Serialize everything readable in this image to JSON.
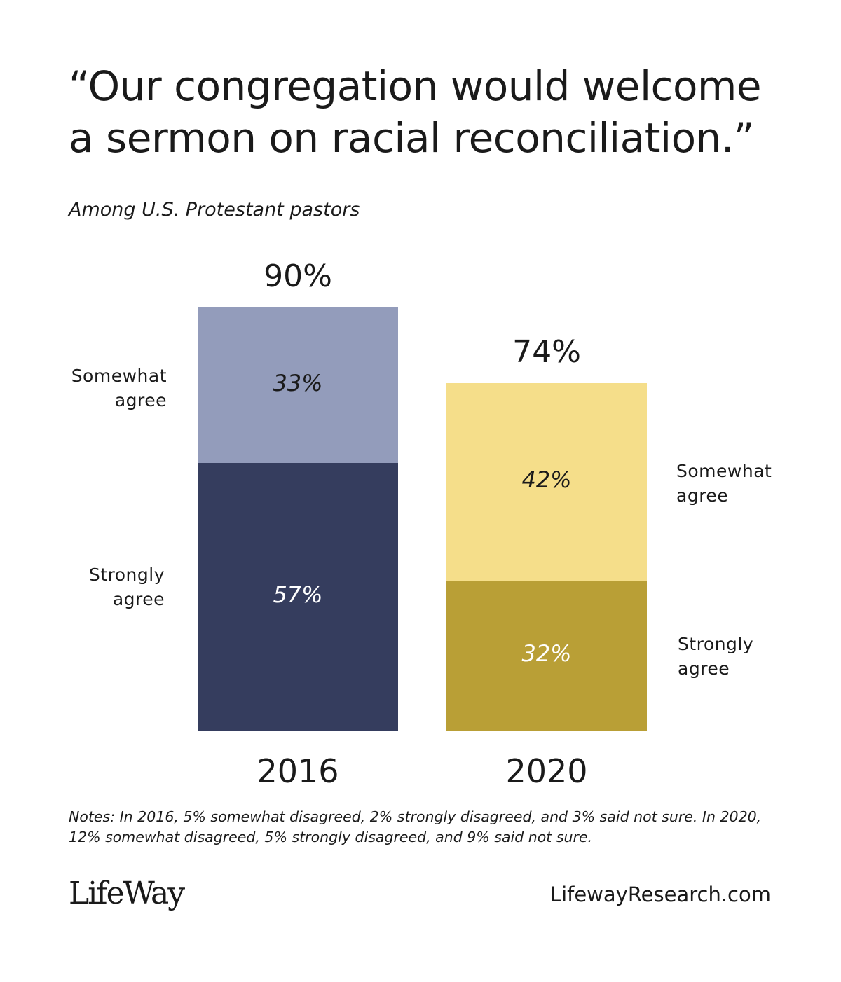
{
  "title": "“Our congregation would welcome a sermon on racial reconciliation.”",
  "subtitle": "Among U.S. Protestant pastors",
  "chart_data": {
    "type": "bar",
    "stacked": true,
    "categories": [
      "2016",
      "2020"
    ],
    "totals": [
      "90%",
      "74%"
    ],
    "series": [
      {
        "name": "Strongly agree",
        "values": [
          57,
          32
        ],
        "labels": [
          "57%",
          "32%"
        ],
        "colors": [
          "#353d5e",
          "#b99f36"
        ]
      },
      {
        "name": "Somewhat agree",
        "values": [
          33,
          42
        ],
        "labels": [
          "33%",
          "42%"
        ],
        "colors": [
          "#939cbb",
          "#f5de8a"
        ]
      }
    ],
    "side_labels": {
      "2016": {
        "somewhat": "Somewhat agree",
        "strongly": "Strongly agree"
      },
      "2020": {
        "somewhat": "Somewhat agree",
        "strongly": "Strongly agree"
      }
    },
    "ylim": [
      0,
      100
    ],
    "grid": false
  },
  "notes": "Notes: In 2016, 5% somewhat disagreed, 2% strongly disagreed, and 3% said not sure. In 2020, 12% somewhat disagreed, 5% strongly disagreed, and 9% said not sure.",
  "footer": {
    "logo": "LifeWay",
    "url": "LifewayResearch.com"
  }
}
